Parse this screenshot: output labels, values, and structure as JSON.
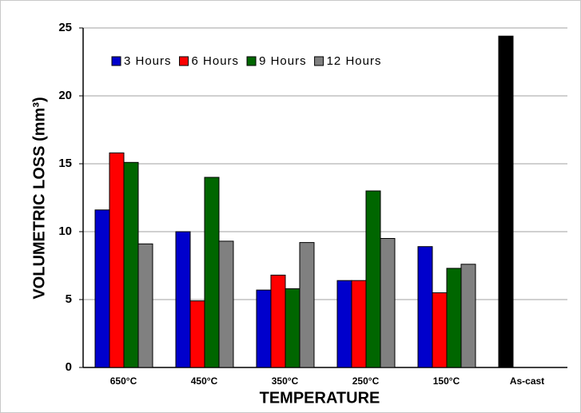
{
  "chart_data": {
    "type": "bar",
    "x_label": "TEMPERATURE",
    "y_label": "VOLUMETRIC LOSS (mm³)",
    "categories": [
      "650°C",
      "450°C",
      "350°C",
      "250°C",
      "150°C",
      "As-cast"
    ],
    "series": [
      {
        "name": "3 Hours",
        "color": "#0000cc",
        "values": [
          11.6,
          10.0,
          5.7,
          6.4,
          8.9,
          null
        ]
      },
      {
        "name": "6 Hours",
        "color": "#ff0000",
        "values": [
          15.8,
          4.9,
          6.8,
          6.4,
          5.5,
          null
        ]
      },
      {
        "name": "9 Hours",
        "color": "#006600",
        "values": [
          15.1,
          14.0,
          5.8,
          13.0,
          7.3,
          null
        ]
      },
      {
        "name": "12 Hours",
        "color": "#808080",
        "values": [
          9.1,
          9.3,
          9.2,
          9.5,
          7.6,
          null
        ]
      },
      {
        "color": "#000000",
        "values": [
          null,
          null,
          null,
          null,
          null,
          24.4
        ]
      }
    ],
    "ylim": [
      0,
      25
    ],
    "yticks": [
      0,
      5,
      10,
      15,
      20,
      25
    ],
    "grid": true,
    "legend": "top"
  }
}
